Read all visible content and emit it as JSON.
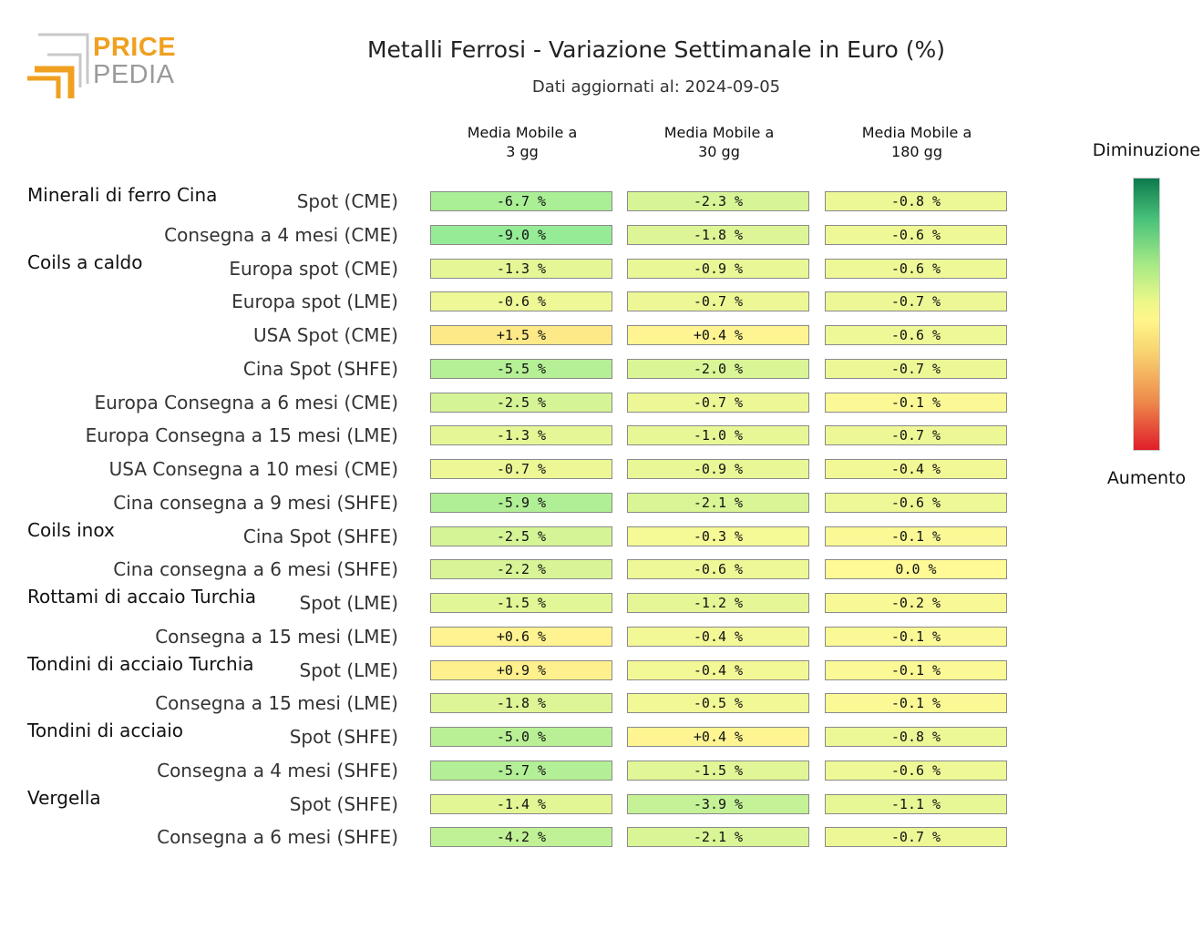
{
  "header": {
    "logo": {
      "word1": "PRICE",
      "word2": "PEDIA",
      "orange": "#f0a020",
      "gray": "#9a9a9a"
    },
    "title": "Metalli Ferrosi - Variazione Settimanale in Euro (%)",
    "subtitle": "Dati aggiornati al: 2024-09-05"
  },
  "legend": {
    "top": "Diminuzione",
    "bottom": "Aumento",
    "colors": [
      "#0e7a4e",
      "#a8ea86",
      "#fff68a",
      "#ee8a4c",
      "#e01e2a"
    ]
  },
  "chart_data": {
    "type": "table",
    "columns": [
      "Media Mobile a\n3 gg",
      "Media Mobile a\n30 gg",
      "Media Mobile a\n180 gg"
    ],
    "groups": [
      {
        "name": "Minerali di ferro Cina",
        "rows": [
          {
            "label": "Spot (CME)",
            "values": [
              -6.7,
              -2.3,
              -0.8
            ],
            "display": [
              "-6.7 %",
              "-2.3 %",
              "-0.8 %"
            ]
          },
          {
            "label": "Consegna a 4 mesi (CME)",
            "values": [
              -9.0,
              -1.8,
              -0.6
            ],
            "display": [
              "-9.0 %",
              "-1.8 %",
              "-0.6 %"
            ]
          }
        ]
      },
      {
        "name": "Coils a caldo",
        "rows": [
          {
            "label": "Europa spot (CME)",
            "values": [
              -1.3,
              -0.9,
              -0.6
            ],
            "display": [
              "-1.3 %",
              "-0.9 %",
              "-0.6 %"
            ]
          },
          {
            "label": "Europa spot (LME)",
            "values": [
              -0.6,
              -0.7,
              -0.7
            ],
            "display": [
              "-0.6 %",
              "-0.7 %",
              "-0.7 %"
            ]
          },
          {
            "label": "USA Spot (CME)",
            "values": [
              1.5,
              0.4,
              -0.6
            ],
            "display": [
              "+1.5 %",
              "+0.4 %",
              "-0.6 %"
            ]
          },
          {
            "label": "Cina Spot (SHFE)",
            "values": [
              -5.5,
              -2.0,
              -0.7
            ],
            "display": [
              "-5.5 %",
              "-2.0 %",
              "-0.7 %"
            ]
          },
          {
            "label": "Europa Consegna a 6 mesi (CME)",
            "values": [
              -2.5,
              -0.7,
              -0.1
            ],
            "display": [
              "-2.5 %",
              "-0.7 %",
              "-0.1 %"
            ]
          },
          {
            "label": "Europa Consegna a 15 mesi (LME)",
            "values": [
              -1.3,
              -1.0,
              -0.7
            ],
            "display": [
              "-1.3 %",
              "-1.0 %",
              "-0.7 %"
            ]
          },
          {
            "label": "USA Consegna a 10 mesi (CME)",
            "values": [
              -0.7,
              -0.9,
              -0.4
            ],
            "display": [
              "-0.7 %",
              "-0.9 %",
              "-0.4 %"
            ]
          },
          {
            "label": "Cina consegna a 9 mesi (SHFE)",
            "values": [
              -5.9,
              -2.1,
              -0.6
            ],
            "display": [
              "-5.9 %",
              "-2.1 %",
              "-0.6 %"
            ]
          }
        ]
      },
      {
        "name": "Coils inox",
        "rows": [
          {
            "label": "Cina Spot (SHFE)",
            "values": [
              -2.5,
              -0.3,
              -0.1
            ],
            "display": [
              "-2.5 %",
              "-0.3 %",
              "-0.1 %"
            ]
          },
          {
            "label": "Cina consegna a 6 mesi (SHFE)",
            "values": [
              -2.2,
              -0.6,
              0.0
            ],
            "display": [
              "-2.2 %",
              "-0.6 %",
              "0.0 %"
            ]
          }
        ]
      },
      {
        "name": "Rottami di accaio Turchia",
        "rows": [
          {
            "label": "Spot (LME)",
            "values": [
              -1.5,
              -1.2,
              -0.2
            ],
            "display": [
              "-1.5 %",
              "-1.2 %",
              "-0.2 %"
            ]
          },
          {
            "label": "Consegna a 15 mesi (LME)",
            "values": [
              0.6,
              -0.4,
              -0.1
            ],
            "display": [
              "+0.6 %",
              "-0.4 %",
              "-0.1 %"
            ]
          }
        ]
      },
      {
        "name": "Tondini di acciaio Turchia",
        "rows": [
          {
            "label": "Spot (LME)",
            "values": [
              0.9,
              -0.4,
              -0.1
            ],
            "display": [
              "+0.9 %",
              "-0.4 %",
              "-0.1 %"
            ]
          },
          {
            "label": "Consegna a 15 mesi (LME)",
            "values": [
              -1.8,
              -0.5,
              -0.1
            ],
            "display": [
              "-1.8 %",
              "-0.5 %",
              "-0.1 %"
            ]
          }
        ]
      },
      {
        "name": "Tondini di acciaio",
        "rows": [
          {
            "label": "Spot (SHFE)",
            "values": [
              -5.0,
              0.4,
              -0.8
            ],
            "display": [
              "-5.0 %",
              "+0.4 %",
              "-0.8 %"
            ]
          },
          {
            "label": "Consegna a 4 mesi (SHFE)",
            "values": [
              -5.7,
              -1.5,
              -0.6
            ],
            "display": [
              "-5.7 %",
              "-1.5 %",
              "-0.6 %"
            ]
          }
        ]
      },
      {
        "name": "Vergella",
        "rows": [
          {
            "label": "Spot (SHFE)",
            "values": [
              -1.4,
              -3.9,
              -1.1
            ],
            "display": [
              "-1.4 %",
              "-3.9 %",
              "-1.1 %"
            ]
          },
          {
            "label": "Consegna a 6 mesi (SHFE)",
            "values": [
              -4.2,
              -2.1,
              -0.7
            ],
            "display": [
              "-4.2 %",
              "-2.1 %",
              "-0.7 %"
            ]
          }
        ]
      }
    ]
  }
}
